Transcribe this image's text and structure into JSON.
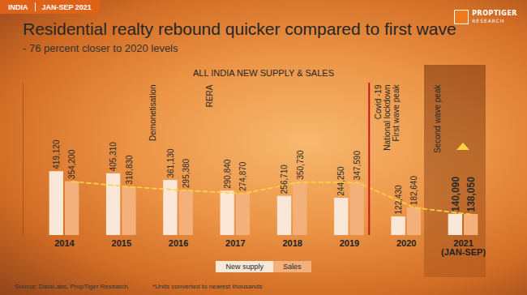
{
  "header": {
    "region": "INDIA",
    "period": "JAN-SEP 2021",
    "brand": "PROPTIGER",
    "brand_sub": "RESEARCH"
  },
  "chart_data": {
    "type": "bar",
    "title": "Residential realty rebound quicker compared to first wave",
    "subtitle": "- 76 percent closer to 2020 levels",
    "heading": "ALL INDIA NEW SUPPLY & SALES",
    "categories": [
      "2014",
      "2015",
      "2016",
      "2017",
      "2018",
      "2019",
      "2020",
      "2021\n(JAN-SEP)"
    ],
    "series": [
      {
        "name": "New supply",
        "color": "#fbe7d8",
        "values": [
          419120,
          405310,
          361130,
          290840,
          256710,
          244250,
          122430,
          140090
        ],
        "value_labels": [
          "419,120",
          "405,310",
          "361,130",
          "290,840",
          "256,710",
          "244,250",
          "122,430",
          "140,090"
        ]
      },
      {
        "name": "Sales",
        "color": "#f4b07a",
        "line_style": "dashed",
        "values": [
          354200,
          318830,
          295380,
          274870,
          350730,
          347590,
          182640,
          138050
        ],
        "value_labels": [
          "354,200",
          "318,830",
          "295,380",
          "274,870",
          "350,730",
          "347,590",
          "182,640",
          "138,050"
        ]
      }
    ],
    "ylim": [
      0,
      1000000
    ],
    "tick_labels": "x",
    "data_labels": true,
    "grid": false,
    "legend": "bottom",
    "annotations": [
      {
        "text": "Demonetisation",
        "category": "2016"
      },
      {
        "text": "RERA",
        "category": "2017"
      },
      {
        "text": "Covid -19",
        "category": "2020",
        "color": "#c4161c"
      },
      {
        "text": "National lockdown",
        "category": "2020"
      },
      {
        "text": "First wave peak",
        "category": "2020"
      },
      {
        "text": "Second wave peak",
        "category": "2021\n(JAN-SEP)"
      }
    ],
    "source": "Source: DataLabs, PropTiger Research",
    "note": "*Units converted to nearest thousands"
  }
}
